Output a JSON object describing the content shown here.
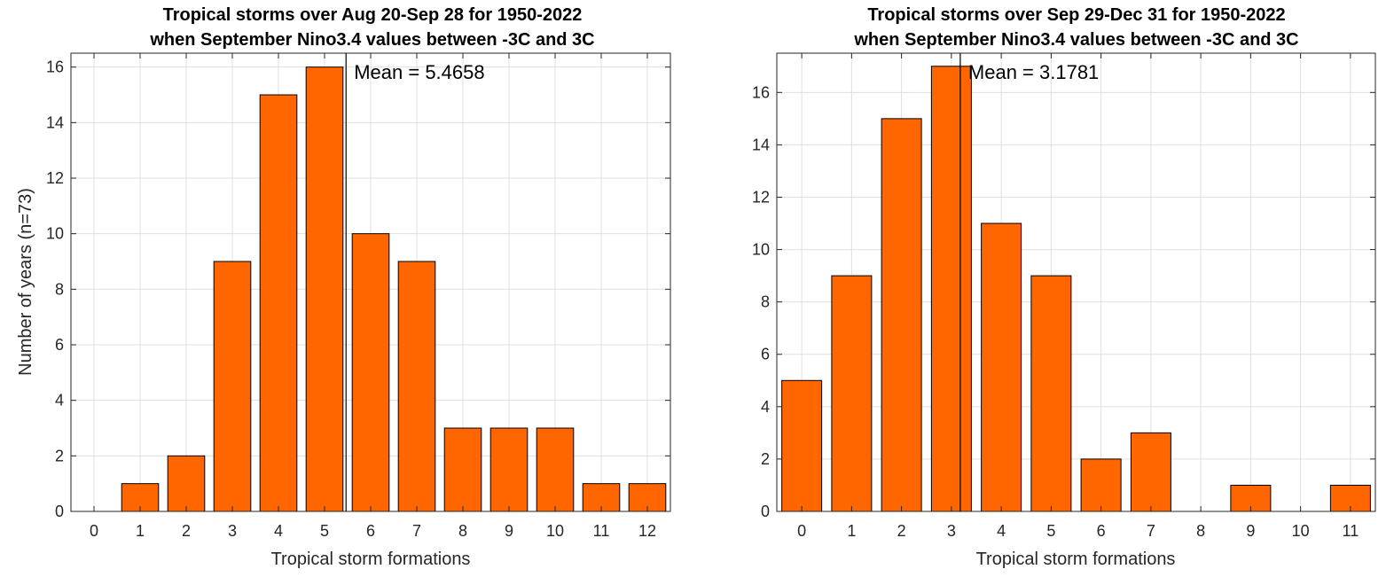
{
  "chart_data": [
    {
      "type": "bar",
      "title": [
        "Tropical storms over Aug 20-Sep 28 for 1950-2022",
        "when September Nino3.4 values between -3C and 3C"
      ],
      "xlabel": "Tropical storm formations",
      "ylabel": "Number of years (n=73)",
      "categories": [
        0,
        1,
        2,
        3,
        4,
        5,
        6,
        7,
        8,
        9,
        10,
        11,
        12
      ],
      "values": [
        0,
        1,
        2,
        9,
        15,
        16,
        10,
        9,
        3,
        3,
        3,
        1,
        1
      ],
      "xlim": [
        -0.5,
        12.5
      ],
      "ylim": [
        0,
        16.5
      ],
      "yticks": [
        0,
        2,
        4,
        6,
        8,
        10,
        12,
        14,
        16
      ],
      "grid": true,
      "mean": 5.4658,
      "mean_label": "Mean = 5.4658",
      "bar_color": "#ff6600",
      "bar_edge_color": "#000000"
    },
    {
      "type": "bar",
      "title": [
        "Tropical storms over Sep 29-Dec 31 for 1950-2022",
        "when September Nino3.4 values between -3C and 3C"
      ],
      "xlabel": "Tropical storm formations",
      "ylabel": "",
      "categories": [
        0,
        1,
        2,
        3,
        4,
        5,
        6,
        7,
        8,
        9,
        10,
        11
      ],
      "values": [
        5,
        9,
        15,
        17,
        11,
        9,
        2,
        3,
        0,
        1,
        0,
        1
      ],
      "xlim": [
        -0.5,
        11.5
      ],
      "ylim": [
        0,
        17.5
      ],
      "yticks": [
        0,
        2,
        4,
        6,
        8,
        10,
        12,
        14,
        16
      ],
      "grid": true,
      "mean": 3.1781,
      "mean_label": "Mean = 3.1781",
      "bar_color": "#ff6600",
      "bar_edge_color": "#000000"
    }
  ]
}
